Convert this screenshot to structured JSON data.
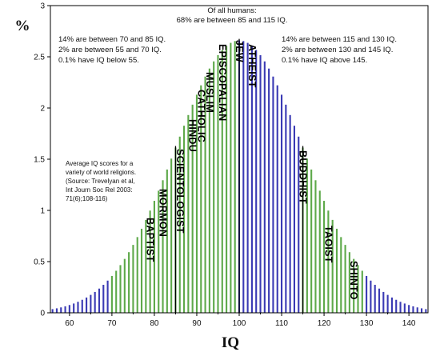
{
  "chart_data": {
    "type": "bar",
    "title": "",
    "xlabel": "IQ",
    "ylabel": "%",
    "xlim": [
      55.5,
      144.5
    ],
    "ylim": [
      0,
      3
    ],
    "xticks": [
      "60",
      "70",
      "80",
      "90",
      "100",
      "110",
      "120",
      "130",
      "140"
    ],
    "yticks": [
      "0",
      "0.5",
      "1",
      "1.5",
      "2",
      "2.5",
      "3"
    ],
    "distribution": {
      "mean": 100,
      "sd": 15,
      "bin_width": 1
    },
    "colors": {
      "blue_band": "#3a3ab4",
      "green_band": "#5ea94a",
      "divider": "#000000",
      "axes": "#000000"
    },
    "bands": [
      {
        "from": 55,
        "to": 70,
        "color": "blue_band"
      },
      {
        "from": 70,
        "to": 85,
        "color": "green_band"
      },
      {
        "from": 85,
        "to": 100,
        "color": "green_band"
      },
      {
        "from": 100,
        "to": 115,
        "color": "blue_band"
      },
      {
        "from": 115,
        "to": 130,
        "color": "green_band"
      },
      {
        "from": 130,
        "to": 145,
        "color": "blue_band"
      }
    ],
    "dividers": [
      85,
      100,
      115
    ],
    "religions": [
      {
        "name": "BAPTIST",
        "iq": 79
      },
      {
        "name": "MORMON",
        "iq": 82
      },
      {
        "name": "SCIENTOLOGIST",
        "iq": 86
      },
      {
        "name": "HINDU",
        "iq": 89
      },
      {
        "name": "CATHOLIC",
        "iq": 91
      },
      {
        "name": "MUSLIM",
        "iq": 93
      },
      {
        "name": "EPISCOPALIAN",
        "iq": 96
      },
      {
        "name": "JEW",
        "iq": 100
      },
      {
        "name": "ATHEIST",
        "iq": 103
      },
      {
        "name": "BUDDHIST",
        "iq": 115
      },
      {
        "name": "TAOIST",
        "iq": 121
      },
      {
        "name": "SHINTO",
        "iq": 127
      }
    ]
  },
  "notes": {
    "center": [
      "Of all humans:",
      "68% are between 85 and 115 IQ."
    ],
    "left": [
      "14% are between 70 and 85 IQ.",
      "2% are between 55 and 70 IQ.",
      "0.1% have IQ below 55."
    ],
    "right": [
      "14% are between 115 and 130 IQ.",
      "2% are between 130 and 145 IQ.",
      "0.1% have IQ above 145."
    ],
    "source": [
      "Average IQ scores for a",
      "variety of world religions.",
      "(Source: Trevelyan et al,",
      "Int Journ Soc Rel 2003:",
      "71(6);108-116)"
    ]
  }
}
